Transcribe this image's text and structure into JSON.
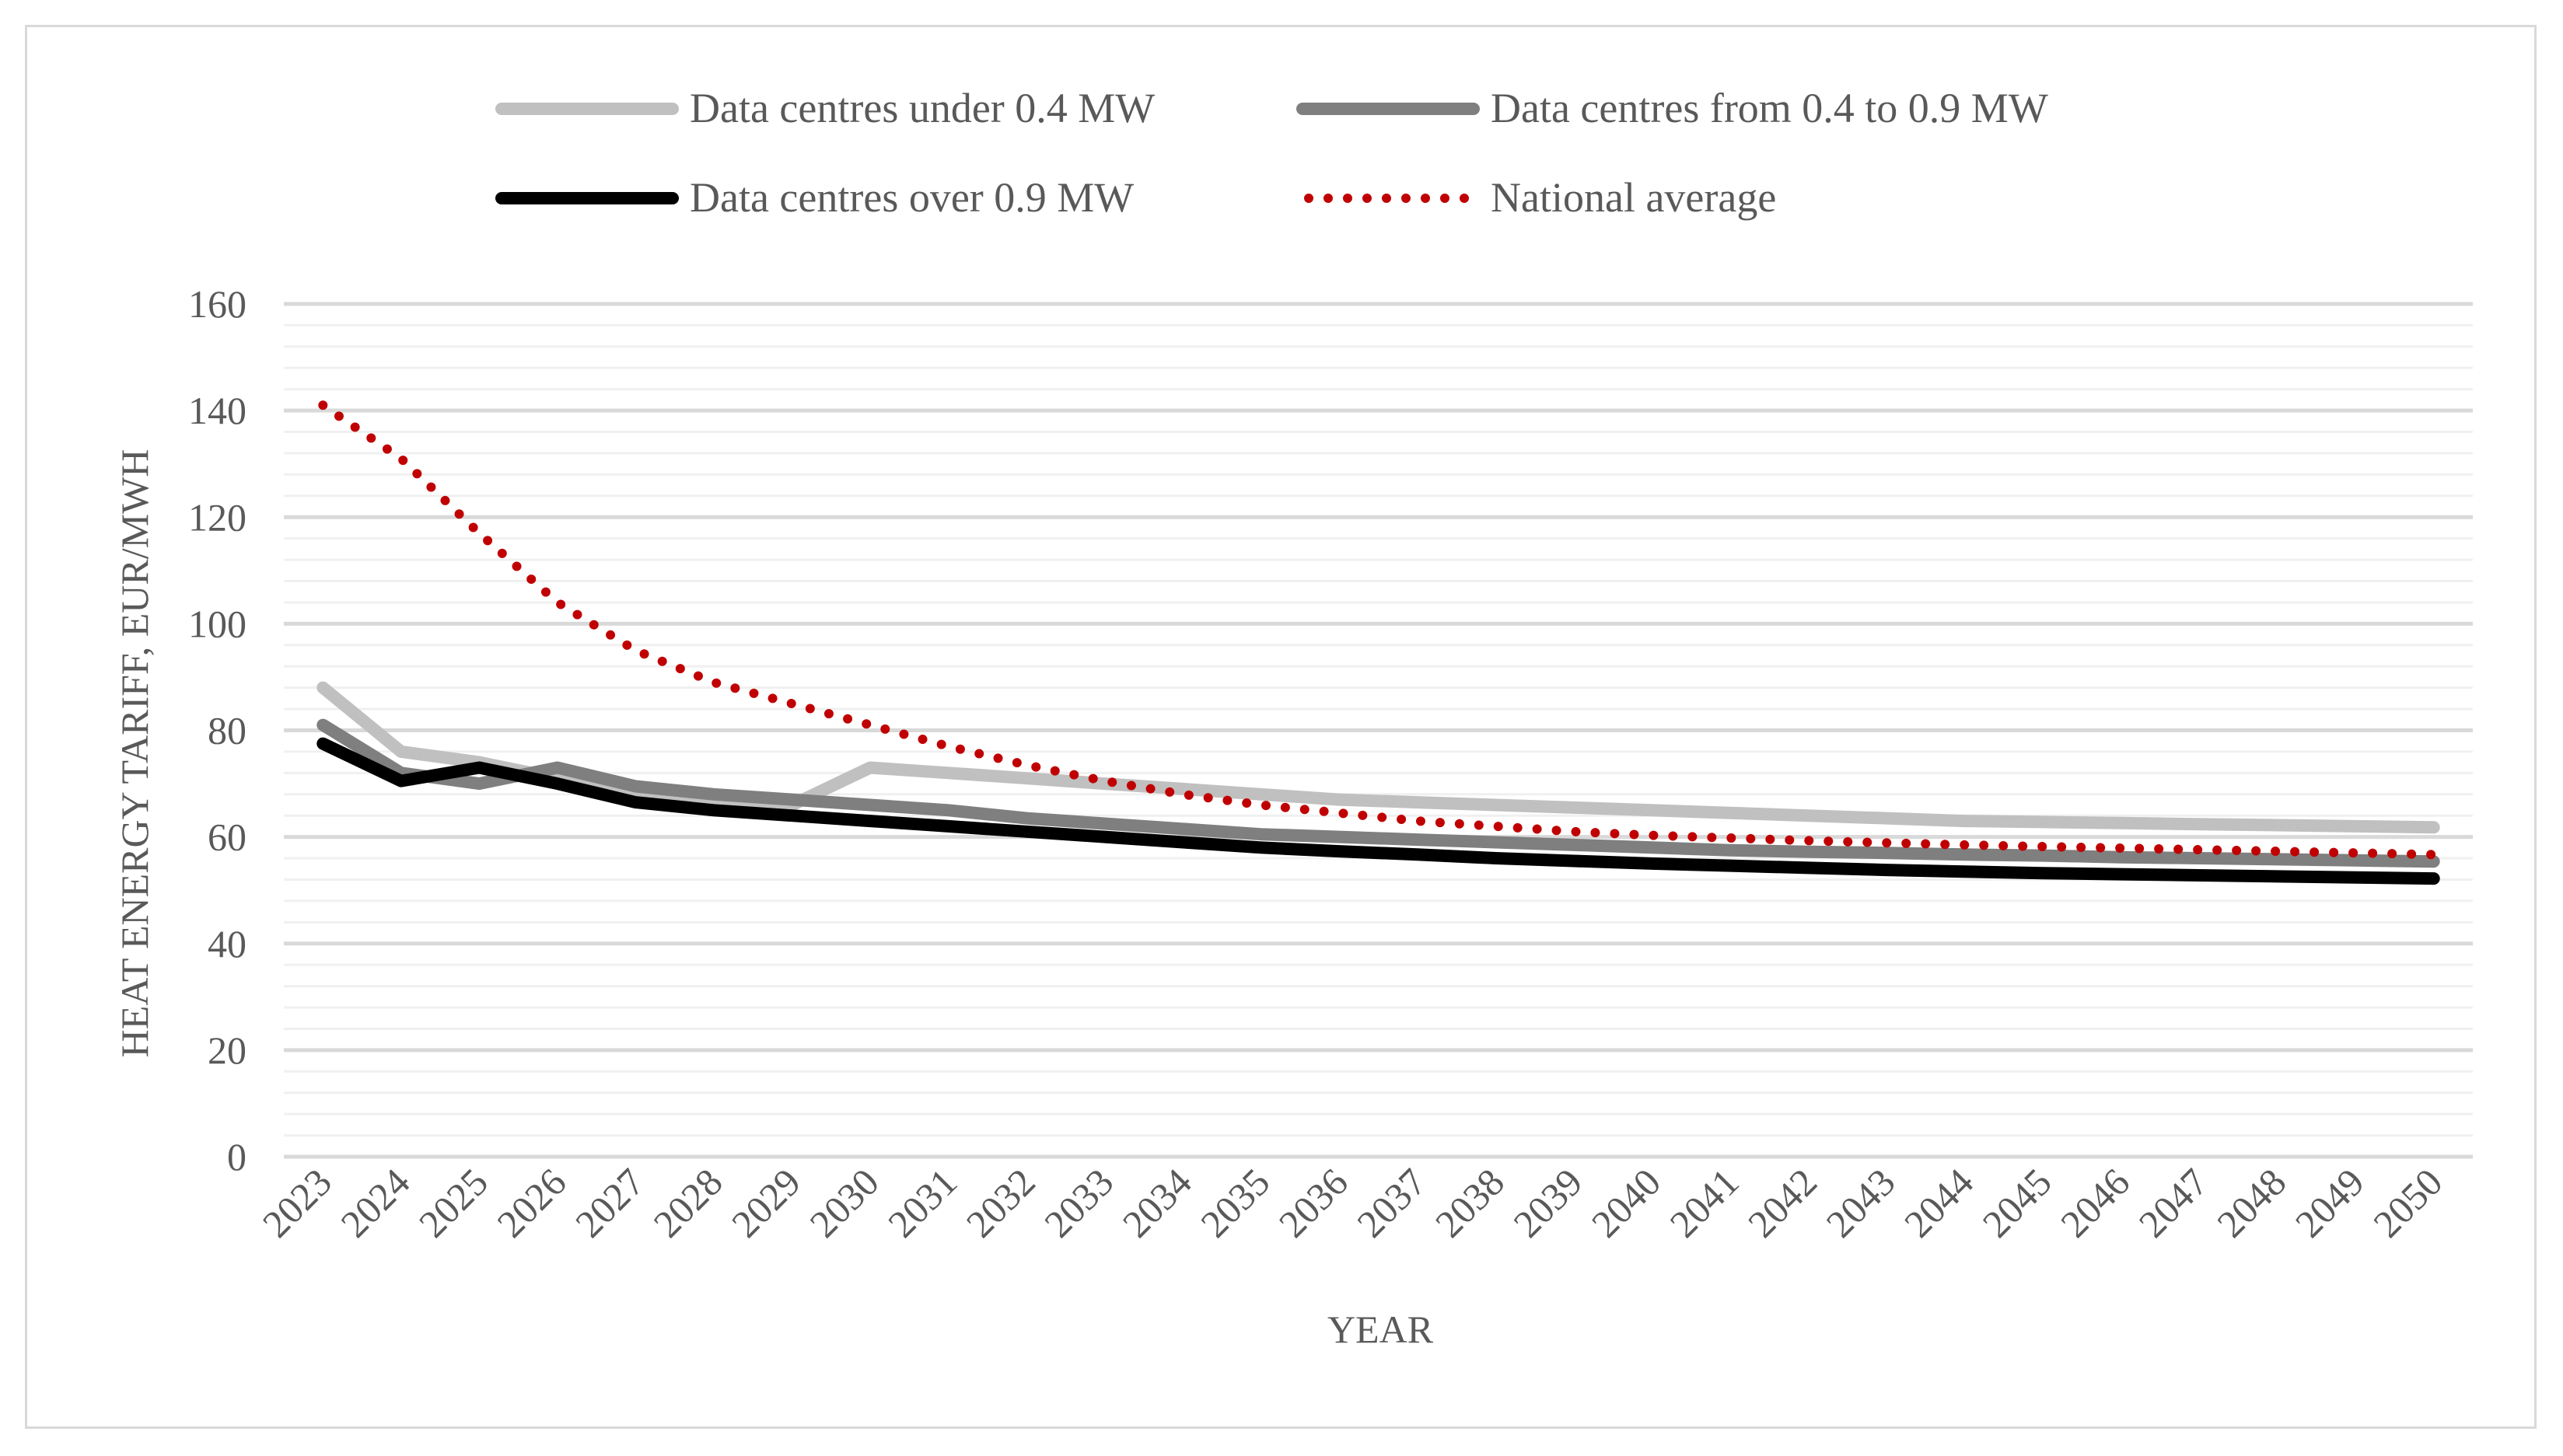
{
  "chart_data": {
    "type": "line",
    "title": "",
    "xlabel": "YEAR",
    "ylabel": "HEAT ENERGY TARIFF, EUR/MWH",
    "ylim": [
      0,
      160
    ],
    "yticks": [
      0,
      20,
      40,
      60,
      80,
      100,
      120,
      140,
      160
    ],
    "grid": "horizontal major and minor gridlines",
    "legend_position": "top",
    "categories": [
      "2023",
      "2024",
      "2025",
      "2026",
      "2027",
      "2028",
      "2029",
      "2030",
      "2031",
      "2032",
      "2033",
      "2034",
      "2035",
      "2036",
      "2037",
      "2038",
      "2039",
      "2040",
      "2041",
      "2042",
      "2043",
      "2044",
      "2045",
      "2046",
      "2047",
      "2048",
      "2049",
      "2050"
    ],
    "series": [
      {
        "name": "Data centres under 0.4 MW",
        "color": "#c0c0c0",
        "style": "solid",
        "values": [
          88,
          76,
          74,
          71,
          68,
          67,
          66,
          73,
          72,
          71,
          70,
          69,
          68,
          67,
          66.5,
          66,
          65.5,
          65,
          64.5,
          64,
          63.5,
          63,
          62.8,
          62.6,
          62.4,
          62.2,
          62,
          61.8
        ]
      },
      {
        "name": "Data centres from 0.4 to 0.9 MW",
        "color": "#7f7f7f",
        "style": "solid",
        "values": [
          81,
          72,
          70,
          73,
          69.5,
          68,
          67,
          66,
          65,
          63.5,
          62.5,
          61.5,
          60.5,
          60,
          59.5,
          59,
          58.5,
          58,
          57.5,
          57.2,
          57,
          56.7,
          56.5,
          56.2,
          56,
          55.8,
          55.6,
          55.4
        ]
      },
      {
        "name": "Data centres over 0.9 MW",
        "color": "#000000",
        "style": "solid",
        "values": [
          77.5,
          70.5,
          73,
          70,
          66.5,
          65,
          64,
          63,
          62,
          61,
          60,
          59,
          58,
          57.3,
          56.7,
          56,
          55.5,
          55,
          54.6,
          54.2,
          53.8,
          53.5,
          53.2,
          53,
          52.8,
          52.6,
          52.4,
          52.2
        ]
      },
      {
        "name": "National average",
        "color": "#c00000",
        "style": "dotted",
        "values": [
          141,
          131,
          117,
          104,
          95,
          89,
          85,
          81,
          77,
          73.5,
          70.5,
          68,
          66,
          64.5,
          63,
          62,
          61,
          60.3,
          59.8,
          59.3,
          58.9,
          58.5,
          58.2,
          57.9,
          57.6,
          57.3,
          57,
          56.7
        ]
      }
    ]
  }
}
